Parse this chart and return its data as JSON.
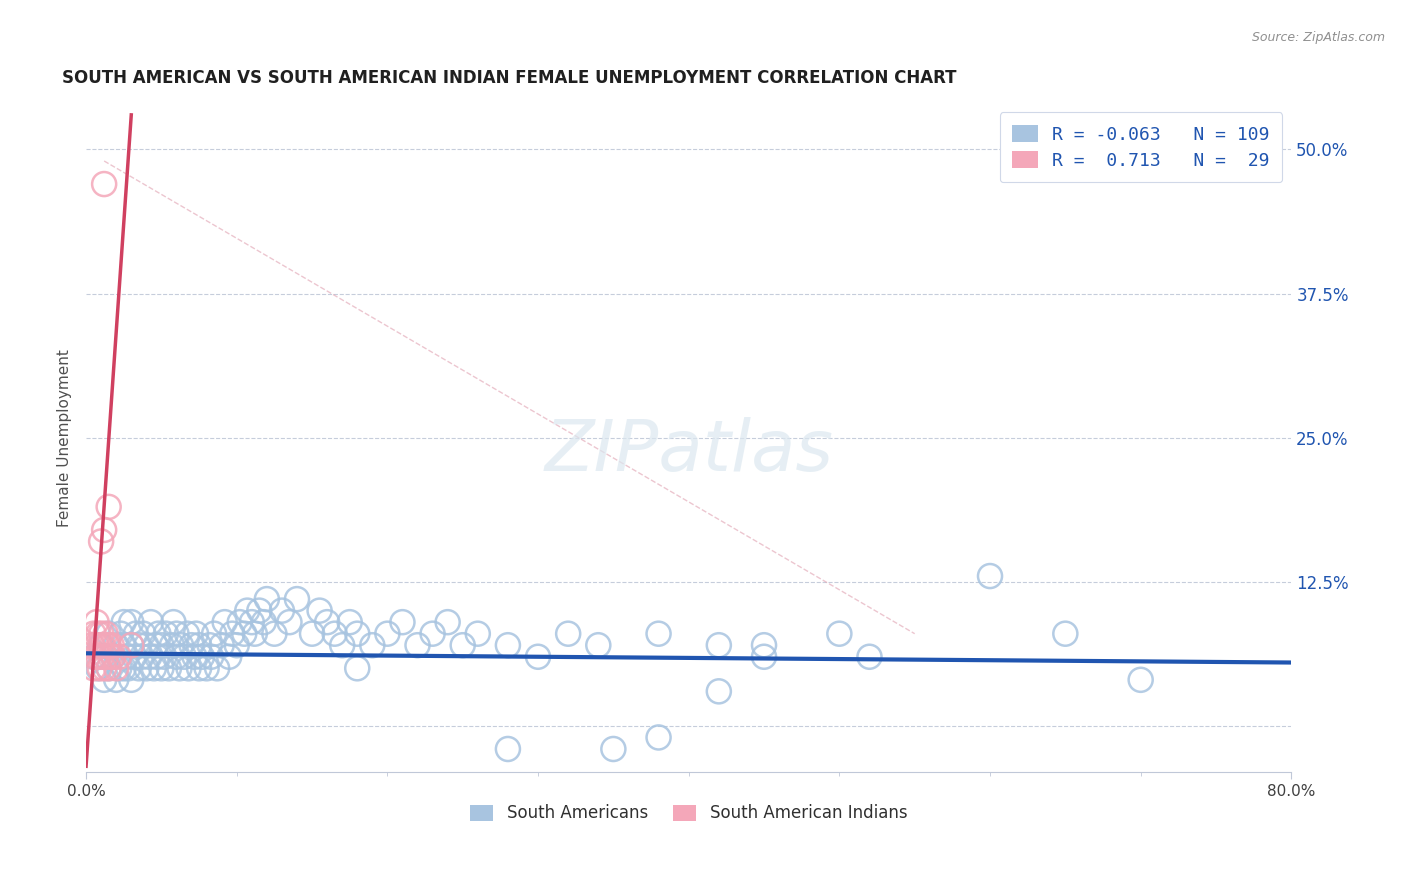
{
  "title": "SOUTH AMERICAN VS SOUTH AMERICAN INDIAN FEMALE UNEMPLOYMENT CORRELATION CHART",
  "source": "Source: ZipAtlas.com",
  "ylabel": "Female Unemployment",
  "right_yticks": [
    0.0,
    0.125,
    0.25,
    0.375,
    0.5
  ],
  "right_yticklabels": [
    "",
    "12.5%",
    "25.0%",
    "37.5%",
    "50.0%"
  ],
  "xmin": 0.0,
  "xmax": 0.8,
  "ymin": -0.04,
  "ymax": 0.54,
  "legend_r1": "-0.063",
  "legend_n1": "109",
  "legend_r2": "0.713",
  "legend_n2": "29",
  "color_blue": "#a8c4e0",
  "color_pink": "#f4a7b9",
  "color_blue_line": "#2055b0",
  "color_pink_line": "#d04060",
  "color_diag_line": "#e0a0b0",
  "color_grid": "#c0c8d8",
  "color_title": "#202020",
  "color_legend_r": "#2055b0",
  "color_right_axis": "#2055b0",
  "background_color": "#ffffff",
  "blue_scatter_x": [
    0.005,
    0.008,
    0.01,
    0.012,
    0.013,
    0.015,
    0.015,
    0.018,
    0.02,
    0.02,
    0.022,
    0.023,
    0.025,
    0.025,
    0.025,
    0.027,
    0.028,
    0.03,
    0.03,
    0.03,
    0.032,
    0.033,
    0.035,
    0.035,
    0.037,
    0.038,
    0.04,
    0.04,
    0.042,
    0.043,
    0.045,
    0.046,
    0.047,
    0.048,
    0.05,
    0.05,
    0.052,
    0.053,
    0.055,
    0.057,
    0.058,
    0.06,
    0.06,
    0.062,
    0.063,
    0.065,
    0.067,
    0.068,
    0.07,
    0.072,
    0.073,
    0.075,
    0.075,
    0.077,
    0.08,
    0.082,
    0.083,
    0.085,
    0.087,
    0.09,
    0.092,
    0.095,
    0.097,
    0.1,
    0.102,
    0.105,
    0.107,
    0.11,
    0.112,
    0.115,
    0.118,
    0.12,
    0.125,
    0.13,
    0.135,
    0.14,
    0.15,
    0.155,
    0.16,
    0.165,
    0.17,
    0.175,
    0.18,
    0.19,
    0.2,
    0.21,
    0.22,
    0.23,
    0.24,
    0.25,
    0.26,
    0.28,
    0.3,
    0.32,
    0.34,
    0.38,
    0.42,
    0.45,
    0.5,
    0.6,
    0.65,
    0.7,
    0.45,
    0.52,
    0.38,
    0.28,
    0.35,
    0.42,
    0.18
  ],
  "blue_scatter_y": [
    0.06,
    0.05,
    0.07,
    0.04,
    0.06,
    0.05,
    0.08,
    0.06,
    0.04,
    0.07,
    0.05,
    0.08,
    0.05,
    0.07,
    0.09,
    0.06,
    0.05,
    0.04,
    0.07,
    0.09,
    0.06,
    0.08,
    0.05,
    0.07,
    0.06,
    0.08,
    0.05,
    0.07,
    0.06,
    0.09,
    0.05,
    0.07,
    0.06,
    0.08,
    0.05,
    0.07,
    0.06,
    0.08,
    0.05,
    0.07,
    0.09,
    0.06,
    0.08,
    0.05,
    0.07,
    0.06,
    0.08,
    0.05,
    0.07,
    0.06,
    0.08,
    0.05,
    0.07,
    0.06,
    0.05,
    0.07,
    0.06,
    0.08,
    0.05,
    0.07,
    0.09,
    0.06,
    0.08,
    0.07,
    0.09,
    0.08,
    0.1,
    0.09,
    0.08,
    0.1,
    0.09,
    0.11,
    0.08,
    0.1,
    0.09,
    0.11,
    0.08,
    0.1,
    0.09,
    0.08,
    0.07,
    0.09,
    0.08,
    0.07,
    0.08,
    0.09,
    0.07,
    0.08,
    0.09,
    0.07,
    0.08,
    0.07,
    0.06,
    0.08,
    0.07,
    0.08,
    0.07,
    0.06,
    0.08,
    0.13,
    0.08,
    0.04,
    0.07,
    0.06,
    -0.01,
    -0.02,
    -0.02,
    0.03,
    0.05
  ],
  "pink_scatter_x": [
    0.004,
    0.005,
    0.005,
    0.006,
    0.007,
    0.007,
    0.008,
    0.008,
    0.009,
    0.009,
    0.01,
    0.01,
    0.01,
    0.011,
    0.012,
    0.012,
    0.013,
    0.013,
    0.014,
    0.015,
    0.015,
    0.016,
    0.017,
    0.018,
    0.02,
    0.022,
    0.03,
    0.015,
    0.012
  ],
  "pink_scatter_y": [
    0.07,
    0.05,
    0.08,
    0.06,
    0.07,
    0.09,
    0.06,
    0.08,
    0.05,
    0.07,
    0.06,
    0.08,
    0.16,
    0.07,
    0.05,
    0.17,
    0.06,
    0.08,
    0.07,
    0.05,
    0.07,
    0.06,
    0.07,
    0.06,
    0.05,
    0.06,
    0.07,
    0.19,
    0.47
  ],
  "blue_line_x": [
    0.0,
    0.8
  ],
  "blue_line_y": [
    0.063,
    0.055
  ],
  "pink_line_x": [
    0.0,
    0.03
  ],
  "pink_line_y": [
    -0.035,
    0.53
  ],
  "diag_line_x": [
    0.012,
    0.55
  ],
  "diag_line_y": [
    0.49,
    0.08
  ]
}
